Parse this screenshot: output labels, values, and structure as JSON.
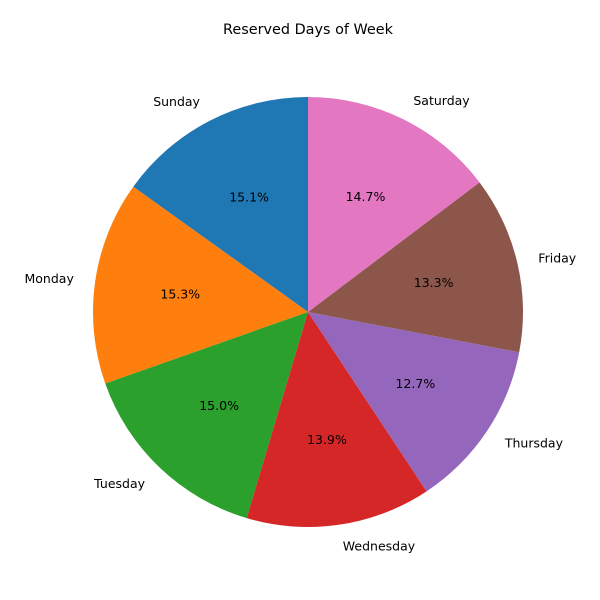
{
  "chart_data": {
    "type": "pie",
    "title": "Reserved Days of Week",
    "start_angle_deg": 90,
    "direction": "counterclockwise",
    "slices": [
      {
        "label": "Sunday",
        "value": 15.1,
        "pct_label": "15.1%",
        "color": "#1f77b4"
      },
      {
        "label": "Monday",
        "value": 15.3,
        "pct_label": "15.3%",
        "color": "#ff7f0e"
      },
      {
        "label": "Tuesday",
        "value": 15.0,
        "pct_label": "15.0%",
        "color": "#2ca02c"
      },
      {
        "label": "Wednesday",
        "value": 13.9,
        "pct_label": "13.9%",
        "color": "#d62728"
      },
      {
        "label": "Thursday",
        "value": 12.7,
        "pct_label": "12.7%",
        "color": "#9467bd"
      },
      {
        "label": "Friday",
        "value": 13.3,
        "pct_label": "13.3%",
        "color": "#8c564b"
      },
      {
        "label": "Saturday",
        "value": 14.7,
        "pct_label": "14.7%",
        "color": "#e377c2"
      }
    ]
  }
}
